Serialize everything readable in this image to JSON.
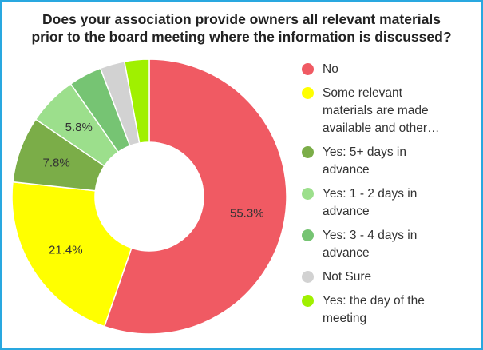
{
  "chart_data": {
    "type": "pie",
    "donut": true,
    "title": [
      "Does your association provide owners all relevant materials",
      "prior to the board meeting where the information is discussed?"
    ],
    "legend_position": "right",
    "series": [
      {
        "name": "No",
        "legend_lines": [
          "No"
        ],
        "value": 55.3,
        "label": "55.3%",
        "color": "#f05a63"
      },
      {
        "name": "Some relevant materials are made available and other…",
        "legend_lines": [
          "Some relevant",
          "materials are made",
          "available and other…"
        ],
        "value": 21.4,
        "label": "21.4%",
        "color": "#ffff00"
      },
      {
        "name": "Yes: 5+ days in advance",
        "legend_lines": [
          "Yes: 5+ days in",
          "advance"
        ],
        "value": 7.8,
        "label": "7.8%",
        "color": "#7bad48"
      },
      {
        "name": "Yes: 1 - 2 days in advance",
        "legend_lines": [
          "Yes: 1 - 2 days in",
          "advance"
        ],
        "value": 5.8,
        "label": "5.8%",
        "color": "#9cdf8c"
      },
      {
        "name": "Yes: 3 - 4 days in advance",
        "legend_lines": [
          "Yes: 3 - 4 days in",
          "advance"
        ],
        "value": 3.9,
        "label": "",
        "color": "#76c473"
      },
      {
        "name": "Not Sure",
        "legend_lines": [
          "Not Sure"
        ],
        "value": 2.9,
        "label": "",
        "color": "#d2d2d2"
      },
      {
        "name": "Yes: the day of the meeting",
        "legend_lines": [
          "Yes: the day of the",
          "meeting"
        ],
        "value": 2.9,
        "label": "",
        "color": "#a0f000"
      }
    ]
  }
}
